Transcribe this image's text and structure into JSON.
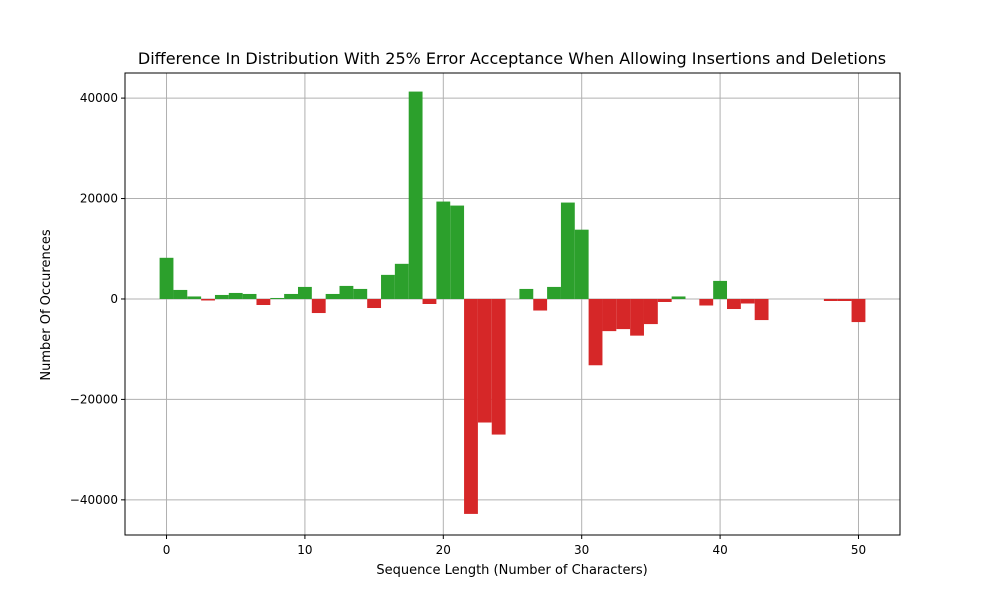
{
  "chart_data": {
    "type": "bar",
    "title": "Difference In Distribution With 25% Error Acceptance When Allowing Insertions and Deletions",
    "xlabel": "Sequence Length (Number of Characters)",
    "ylabel": "Number Of Occurences",
    "xlim": [
      -3,
      53
    ],
    "ylim": [
      -47000,
      45000
    ],
    "xticks": [
      0,
      10,
      20,
      30,
      40,
      50
    ],
    "xtick_labels": [
      "0",
      "10",
      "20",
      "30",
      "40",
      "50"
    ],
    "yticks": [
      -40000,
      -20000,
      0,
      20000,
      40000
    ],
    "ytick_labels": [
      "−40000",
      "−20000",
      "0",
      "20000",
      "40000"
    ],
    "grid": true,
    "bar_width": 1,
    "colors": {
      "positive": "#2ca02c",
      "negative": "#d62728"
    },
    "x": [
      0,
      1,
      2,
      3,
      4,
      5,
      6,
      7,
      8,
      9,
      10,
      11,
      12,
      13,
      14,
      15,
      16,
      17,
      18,
      19,
      20,
      21,
      22,
      23,
      24,
      25,
      26,
      27,
      28,
      29,
      30,
      31,
      32,
      33,
      34,
      35,
      36,
      37,
      38,
      39,
      40,
      41,
      42,
      43,
      44,
      45,
      46,
      47,
      48,
      49,
      50
    ],
    "values": [
      8200,
      1800,
      500,
      -300,
      800,
      1200,
      1000,
      -1200,
      200,
      1000,
      2400,
      -2800,
      1000,
      2600,
      2000,
      -1800,
      4800,
      7000,
      41300,
      -1000,
      19400,
      18600,
      -42800,
      -24600,
      -27000,
      0,
      2000,
      -2300,
      2400,
      19200,
      13800,
      -13200,
      -6400,
      -6000,
      -7300,
      -5000,
      -600,
      500,
      0,
      -1300,
      3600,
      -2000,
      -900,
      -4200,
      0,
      0,
      0,
      0,
      -400,
      -400,
      -4600
    ]
  }
}
